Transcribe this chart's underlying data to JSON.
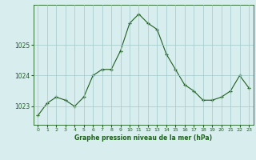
{
  "x": [
    0,
    1,
    2,
    3,
    4,
    5,
    6,
    7,
    8,
    9,
    10,
    11,
    12,
    13,
    14,
    15,
    16,
    17,
    18,
    19,
    20,
    21,
    22,
    23
  ],
  "y": [
    1022.7,
    1023.1,
    1023.3,
    1023.2,
    1023.0,
    1023.3,
    1024.0,
    1024.2,
    1024.2,
    1024.8,
    1025.7,
    1026.0,
    1025.7,
    1025.5,
    1024.7,
    1024.2,
    1023.7,
    1023.5,
    1023.2,
    1023.2,
    1023.3,
    1023.5,
    1024.0,
    1023.6
  ],
  "line_color": "#1e5e1e",
  "marker_color": "#1e5e1e",
  "bg_color": "#d8eeee",
  "grid_color": "#a0c8c8",
  "axis_color": "#1e5e1e",
  "title": "Graphe pression niveau de la mer (hPa)",
  "yticks": [
    1023,
    1024,
    1025
  ],
  "ylim": [
    1022.4,
    1026.3
  ],
  "xlim": [
    -0.5,
    23.5
  ]
}
